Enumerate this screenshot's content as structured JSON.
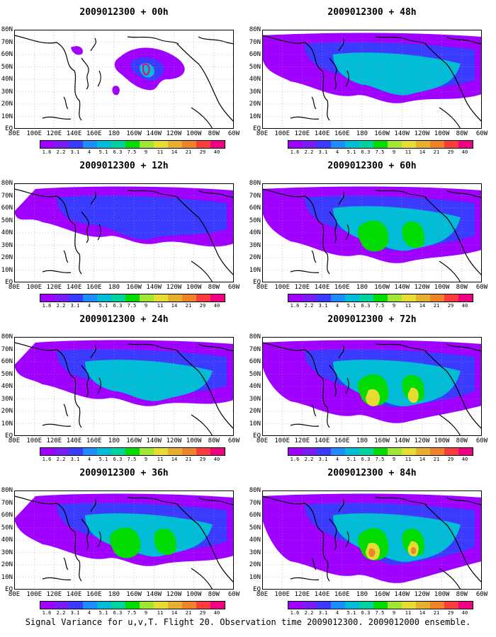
{
  "panels": [
    {
      "title": "2009012300 + 00h"
    },
    {
      "title": "2009012300 + 48h"
    },
    {
      "title": "2009012300 + 12h"
    },
    {
      "title": "2009012300 + 60h"
    },
    {
      "title": "2009012300 + 24h"
    },
    {
      "title": "2009012300 + 72h"
    },
    {
      "title": "2009012300 + 36h"
    },
    {
      "title": "2009012300 + 84h"
    }
  ],
  "lat_labels": [
    "80N",
    "70N",
    "60N",
    "50N",
    "40N",
    "30N",
    "20N",
    "10N",
    "EQ"
  ],
  "lon_labels": [
    "80E",
    "100E",
    "120E",
    "140E",
    "160E",
    "180",
    "160W",
    "140W",
    "120W",
    "100W",
    "80W",
    "60W"
  ],
  "colorbar": {
    "labels": [
      "1.6",
      "2.2",
      "3.1",
      "4",
      "5.1",
      "6.3",
      "7.5",
      "9",
      "11",
      "14",
      "21",
      "29",
      "40"
    ],
    "colors": [
      "#9f00ff",
      "#7a1df5",
      "#3b3bff",
      "#1c8cff",
      "#00bcd6",
      "#00d2a0",
      "#00dc00",
      "#a0e632",
      "#e6dc32",
      "#e6af2d",
      "#f08228",
      "#fa3c3c",
      "#f00082"
    ]
  },
  "caption": "Signal Variance for u,v,T. Flight 20. Observation time 2009012300. 2009012000 ensemble.",
  "chart_data": {
    "type": "heatmap",
    "variable": "Signal Variance for u,v,T",
    "flight": "Flight 20",
    "observation_time": "2009012300",
    "ensemble": "2009012000",
    "x_range": [
      "80E",
      "60W"
    ],
    "y_range": [
      "EQ",
      "80N"
    ],
    "contour_levels": [
      1.6,
      2.2,
      3.1,
      4,
      5.1,
      6.3,
      7.5,
      9,
      11,
      14,
      21,
      29,
      40
    ],
    "forecast_leads_h": [
      0,
      12,
      24,
      36,
      48,
      60,
      72,
      84
    ]
  }
}
